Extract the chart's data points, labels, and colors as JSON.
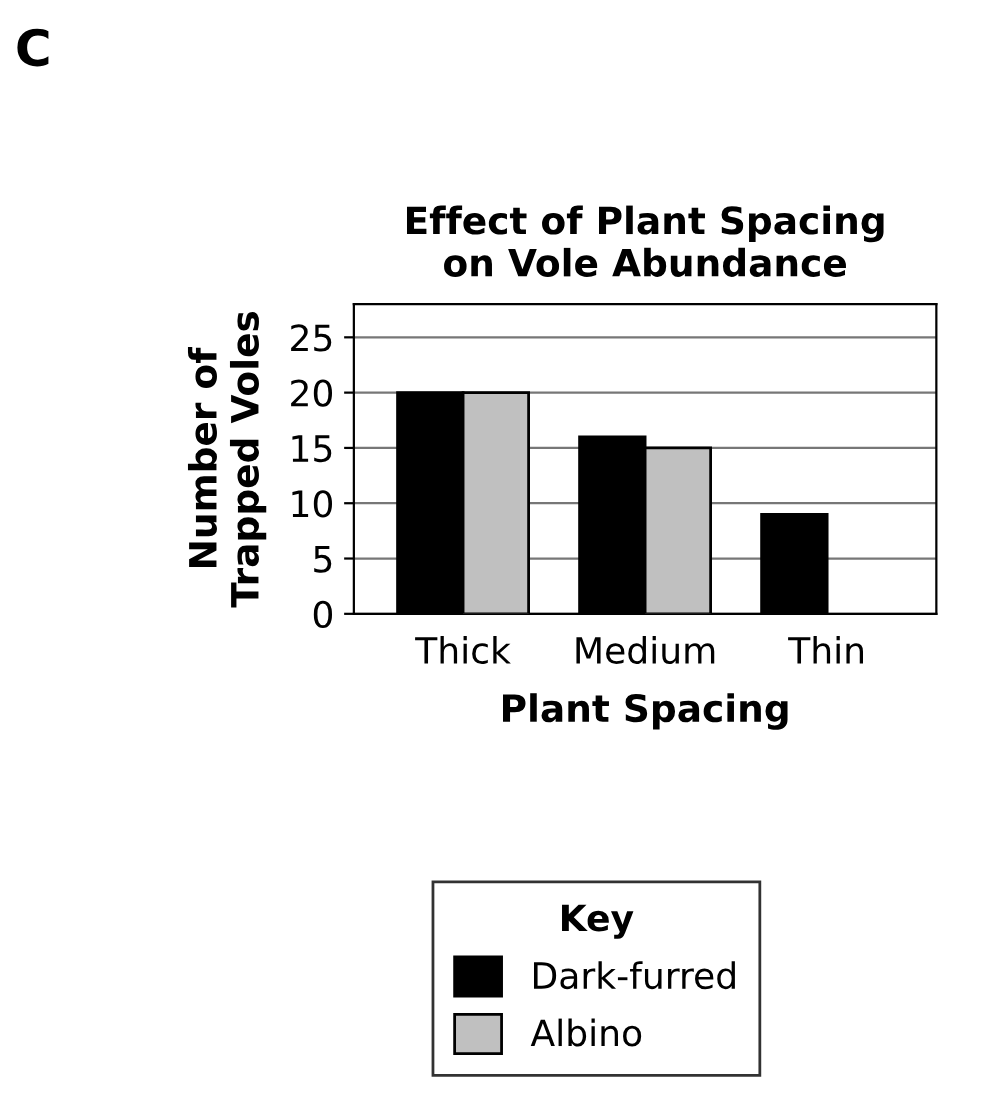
{
  "chart_data": {
    "type": "bar",
    "title": "Effect of Plant Spacing\non Vole Abundance",
    "xlabel": "Plant Spacing",
    "ylabel": "Number of\nTrapped Voles",
    "annotations": [
      "C"
    ],
    "categories": [
      "Thick",
      "Medium",
      "Thin"
    ],
    "series": [
      {
        "name": "Dark-furred",
        "color": "#000000",
        "values": [
          20,
          16,
          9
        ]
      },
      {
        "name": "Albino",
        "color": "#c0c0c0",
        "values": [
          20,
          15,
          null
        ]
      }
    ],
    "ylim": [
      0,
      28
    ],
    "yticks": [
      0,
      5,
      10,
      15,
      20,
      25
    ],
    "grid": "y",
    "legend": "bottom",
    "legend_title": "Key"
  }
}
